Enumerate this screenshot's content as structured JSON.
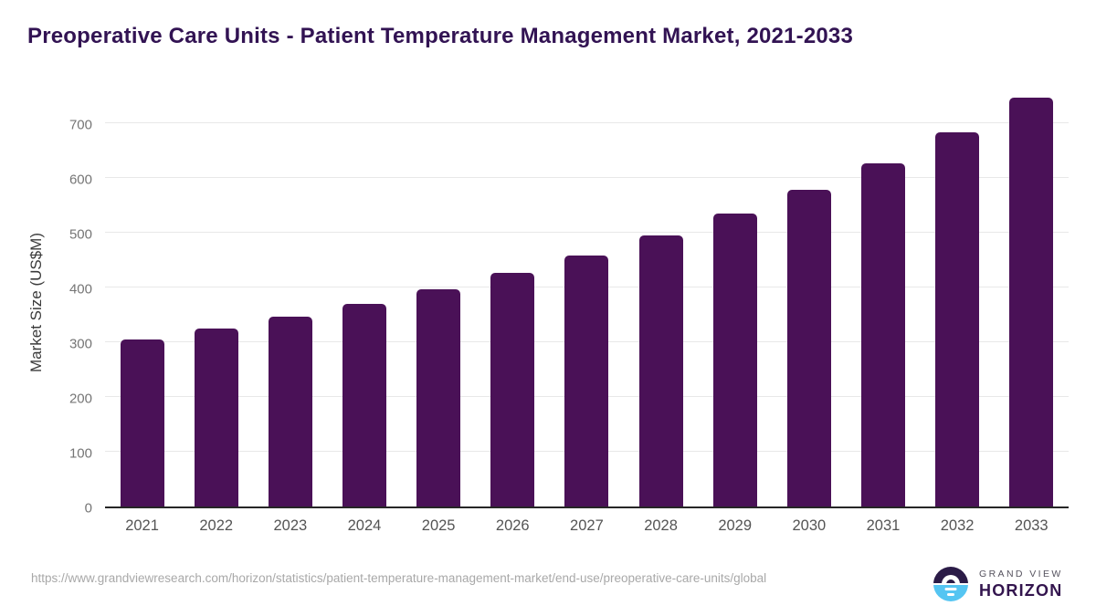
{
  "page": {
    "background": "#ffffff"
  },
  "header": {
    "title": "Preoperative Care Units - Patient Temperature Management Market, 2021-2033"
  },
  "chart_data": {
    "type": "bar",
    "title": "Preoperative Care Units - Patient Temperature Management Market, 2021-2033",
    "categories": [
      "2021",
      "2022",
      "2023",
      "2024",
      "2025",
      "2026",
      "2027",
      "2028",
      "2029",
      "2030",
      "2031",
      "2032",
      "2033"
    ],
    "values": [
      305,
      325,
      346,
      370,
      397,
      426,
      458,
      495,
      535,
      578,
      627,
      683,
      747
    ],
    "xlabel": "",
    "ylabel": "Market Size (US$M)",
    "ylim": [
      0,
      750
    ],
    "yticks": [
      0,
      100,
      200,
      300,
      400,
      500,
      600,
      700
    ],
    "grid": true,
    "legend": false,
    "bar_color": "#4a1157"
  },
  "footer": {
    "source_url": "https://www.grandviewresearch.com/horizon/statistics/patient-temperature-management-market/end-use/preoperative-care-units/global",
    "logo": {
      "brand_top": "GRAND VIEW",
      "brand_bottom": "HORIZON"
    }
  },
  "colors": {
    "page_bg": "#ffffff",
    "bar": "#4a1157",
    "title": "#321353",
    "axis_line": "#262626",
    "gridline": "#e8e8e8",
    "y_tick": "#757575",
    "x_tick": "#545454",
    "url_text": "#a8a8a8",
    "logo_dark": "#2b1b47",
    "logo_blue": "#55c5f2",
    "logo_brand_top": "#55525e",
    "logo_brand_bottom": "#33154e"
  }
}
